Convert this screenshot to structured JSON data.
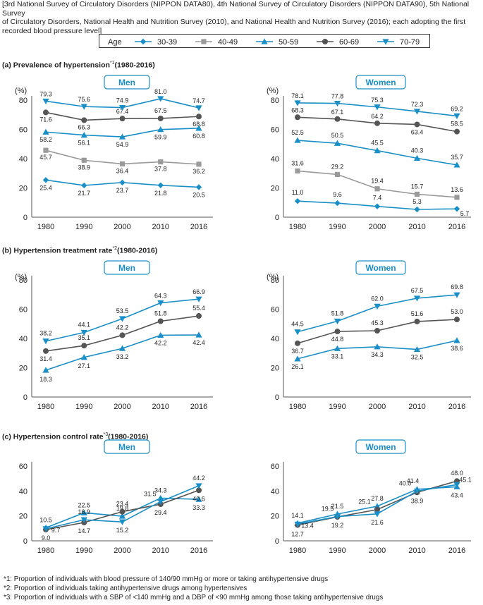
{
  "header": {
    "line1": "[3rd National Survey of Circulatory Disorders (NIPPON DATA80), 4th National Survey of Circulatory Disorders (NIPPON DATA90), 5th National Survey",
    "line2": "of Circulatory Disorders, National Health and Nutrition Survey (2010),  and National Health and Nutrition Survey (2016); each adopting the first",
    "line3": "recorded blood pressure level]"
  },
  "legend": {
    "label": "Age",
    "items": [
      {
        "name": "30-39",
        "marker": "diamond",
        "color": "#1a8fc7"
      },
      {
        "name": "40-49",
        "marker": "square",
        "color": "#9a9a9a"
      },
      {
        "name": "50-59",
        "marker": "triangle-up",
        "color": "#1a8fc7"
      },
      {
        "name": "60-69",
        "marker": "circle",
        "color": "#555555"
      },
      {
        "name": "70-79",
        "marker": "triangle-down",
        "color": "#1a8fc7"
      }
    ]
  },
  "sections": {
    "a": {
      "prefix": "(a)",
      "title": "Prevalence of hypertension",
      "mark": "*1",
      "range": "(1980-2016)"
    },
    "b": {
      "prefix": "(b)",
      "title": "Hypertension treatment rate",
      "mark": "*2",
      "range": "(1980-2016)"
    },
    "c": {
      "prefix": "(c)",
      "title": "Hypertension control rate",
      "mark": "*3",
      "range": "(1980-2016)"
    }
  },
  "colors": {
    "accent": "#1a8fc7",
    "gray": "#9a9a9a",
    "dark": "#555555"
  },
  "chart_data": [
    {
      "id": "a-men",
      "type": "line",
      "panel_label": "Men",
      "ylabel": "(%)",
      "categories": [
        "1980",
        "1990",
        "2000",
        "2010",
        "2016"
      ],
      "ylim": [
        0,
        80
      ],
      "yticks": [
        0,
        20,
        40,
        60,
        80
      ],
      "series": [
        {
          "name": "30-39",
          "values": [
            25.4,
            21.7,
            23.7,
            21.8,
            20.5
          ]
        },
        {
          "name": "40-49",
          "values": [
            45.7,
            38.9,
            36.4,
            37.8,
            36.2
          ]
        },
        {
          "name": "50-59",
          "values": [
            58.2,
            56.1,
            54.9,
            59.9,
            60.8
          ]
        },
        {
          "name": "60-69",
          "values": [
            71.6,
            66.3,
            67.4,
            67.5,
            68.8
          ]
        },
        {
          "name": "70-79",
          "values": [
            79.3,
            75.6,
            74.9,
            81.0,
            74.7
          ]
        }
      ]
    },
    {
      "id": "a-women",
      "type": "line",
      "panel_label": "Women",
      "ylabel": "(%)",
      "categories": [
        "1980",
        "1990",
        "2000",
        "2010",
        "2016"
      ],
      "ylim": [
        0,
        80
      ],
      "yticks": [
        0,
        20,
        40,
        60,
        80
      ],
      "series": [
        {
          "name": "30-39",
          "values": [
            11.0,
            9.6,
            7.4,
            5.3,
            5.7
          ]
        },
        {
          "name": "40-49",
          "values": [
            31.6,
            29.2,
            19.4,
            15.7,
            13.6
          ]
        },
        {
          "name": "50-59",
          "values": [
            52.5,
            50.5,
            45.5,
            40.3,
            35.7
          ]
        },
        {
          "name": "60-69",
          "values": [
            68.3,
            67.1,
            64.2,
            63.4,
            58.5
          ]
        },
        {
          "name": "70-79",
          "values": [
            78.1,
            77.8,
            75.3,
            72.3,
            69.2
          ]
        }
      ]
    },
    {
      "id": "b-men",
      "type": "line",
      "panel_label": "Men",
      "ylabel": "(%)",
      "categories": [
        "1980",
        "1990",
        "2000",
        "2010",
        "2016"
      ],
      "ylim": [
        0,
        80
      ],
      "yticks": [
        0,
        20,
        40,
        60,
        80
      ],
      "series": [
        {
          "name": "50-59",
          "values": [
            18.3,
            27.1,
            33.2,
            42.2,
            42.4
          ]
        },
        {
          "name": "60-69",
          "values": [
            31.4,
            35.1,
            42.2,
            51.8,
            55.4
          ]
        },
        {
          "name": "70-79",
          "values": [
            38.2,
            44.1,
            53.5,
            64.3,
            66.9
          ]
        }
      ]
    },
    {
      "id": "b-women",
      "type": "line",
      "panel_label": "Women",
      "ylabel": "(%)",
      "categories": [
        "1980",
        "1990",
        "2000",
        "2010",
        "2016"
      ],
      "ylim": [
        0,
        80
      ],
      "yticks": [
        0,
        20,
        40,
        60,
        80
      ],
      "series": [
        {
          "name": "50-59",
          "values": [
            26.1,
            33.1,
            34.3,
            32.5,
            38.6
          ]
        },
        {
          "name": "60-69",
          "values": [
            36.7,
            44.8,
            45.3,
            51.6,
            53.0
          ]
        },
        {
          "name": "70-79",
          "values": [
            44.5,
            51.8,
            62.0,
            67.5,
            69.8
          ]
        }
      ]
    },
    {
      "id": "c-men",
      "type": "line",
      "panel_label": "Men",
      "ylabel": "",
      "categories": [
        "1980",
        "1990",
        "2000",
        "2010",
        "2016"
      ],
      "ylim": [
        0,
        60
      ],
      "yticks": [
        0,
        20,
        40,
        60
      ],
      "series": [
        {
          "name": "50-59",
          "values": [
            10.5,
            22.5,
            19.8,
            34.3,
            33.3
          ]
        },
        {
          "name": "60-69",
          "values": [
            9.0,
            14.7,
            23.4,
            29.4,
            40.6
          ]
        },
        {
          "name": "70-79",
          "values": [
            9.7,
            16.9,
            15.2,
            31.5,
            44.2
          ]
        }
      ]
    },
    {
      "id": "c-women",
      "type": "line",
      "panel_label": "Women",
      "ylabel": "",
      "categories": [
        "1980",
        "1990",
        "2000",
        "2010",
        "2016"
      ],
      "ylim": [
        0,
        60
      ],
      "yticks": [
        0,
        20,
        40,
        60
      ],
      "series": [
        {
          "name": "50-59",
          "values": [
            14.1,
            21.5,
            27.8,
            41.4,
            43.4
          ]
        },
        {
          "name": "60-69",
          "values": [
            12.7,
            19.2,
            25.1,
            38.9,
            48.0
          ]
        },
        {
          "name": "70-79",
          "values": [
            13.4,
            19.5,
            21.6,
            40.0,
            45.1
          ]
        }
      ]
    }
  ],
  "footnotes": [
    {
      "mark": "*1",
      "text": ": Proportion of individuals with blood pressure of 140/90 mmHg or more or taking antihypertensive drugs"
    },
    {
      "mark": "*2",
      "text": ": Proportion of individuals taking antihypertensive drugs among hypertensives"
    },
    {
      "mark": "*3",
      "text": ": Proportion of individuals with a SBP of <140 mmHg and a DBP of <90 mmHg among those taking antihypertensive drugs"
    }
  ]
}
